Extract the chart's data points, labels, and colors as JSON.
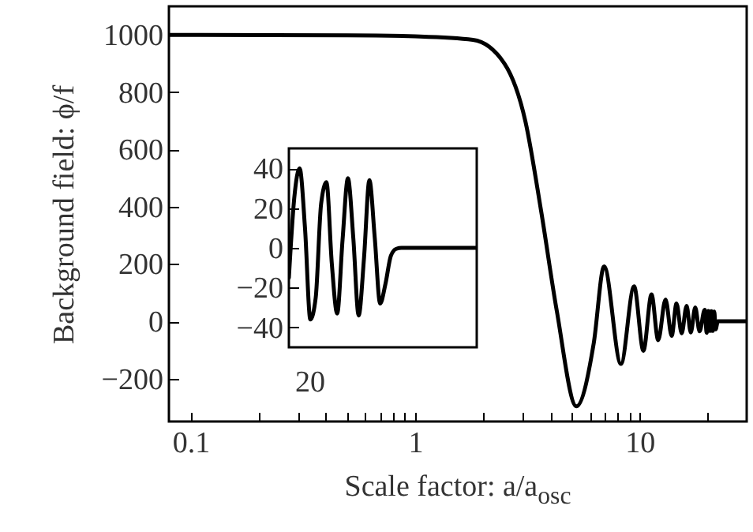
{
  "chart_data": [
    {
      "type": "line",
      "xlabel": "Scale factor: a/a$_{osc}$",
      "ylabel": "Background field: ϕ/f",
      "log": "x",
      "color": "#000000",
      "xlim": [
        0.08,
        30
      ],
      "ylim": [
        -350,
        1100
      ],
      "xticks": [
        0.1,
        {
          "value": 0.2,
          "label": null
        },
        {
          "value": 0.3,
          "label": null
        },
        {
          "value": 0.4,
          "label": null
        },
        {
          "value": 0.5,
          "label": null
        },
        {
          "value": 0.6,
          "label": null
        },
        {
          "value": 0.7,
          "label": null
        },
        {
          "value": 0.8,
          "label": null
        },
        {
          "value": 0.9,
          "label": null
        },
        1,
        {
          "value": 2,
          "label": null
        },
        {
          "value": 3,
          "label": null
        },
        {
          "value": 4,
          "label": null
        },
        {
          "value": 5,
          "label": null
        },
        {
          "value": 6,
          "label": null
        },
        {
          "value": 7,
          "label": null
        },
        {
          "value": 8,
          "label": null
        },
        {
          "value": 9,
          "label": null
        },
        10,
        {
          "value": 20,
          "label": null
        }
      ],
      "yticks": [
        {
          "value": -200,
          "label": "−200"
        },
        0,
        200,
        400,
        600,
        800,
        1000
      ],
      "x": [
        0.08,
        0.5,
        1,
        1.81,
        2.5,
        3.1,
        3.64,
        4.28,
        5.23,
        6.25,
        6.95,
        8.26,
        9.45,
        10.4,
        11.3,
        12.1,
        13.05,
        13.9,
        14.6,
        15.4,
        16.2,
        16.9,
        17.7,
        18.5,
        19.5,
        19.9,
        20.24,
        20.57,
        20.88,
        21.18,
        21.51,
        21.82,
        22.32,
        30
      ],
      "values": [
        1000,
        999,
        995,
        983,
        900,
        698,
        386,
        35,
        -297,
        -76,
        192,
        -149,
        122,
        -103,
        94,
        -66,
        76,
        -51,
        62,
        -42,
        54,
        -39,
        48,
        -35,
        40,
        -40,
        36,
        -34,
        35,
        -34,
        34,
        -28,
        0,
        0
      ]
    },
    {
      "type": "line",
      "color": "#000000",
      "ylim": [
        -50,
        50
      ],
      "annotations": [
        "20"
      ],
      "yticks": [
        {
          "value": -40,
          "label": "−40"
        },
        {
          "value": -20,
          "label": "−20"
        },
        0,
        20,
        40
      ],
      "categories": [
        null,
        null,
        null,
        null,
        null,
        null,
        null,
        null,
        null,
        null,
        null,
        null,
        null,
        null,
        null,
        null,
        null,
        null,
        null,
        null,
        null,
        null,
        null,
        null,
        null,
        null,
        null,
        null,
        null,
        null,
        null,
        null,
        null,
        null,
        null,
        null
      ],
      "values": [
        -15,
        25,
        40,
        10,
        -36,
        -25,
        22,
        33,
        -8,
        -33,
        4,
        35,
        5,
        -34,
        -5,
        34,
        5,
        -28,
        -18,
        -4,
        -0.5,
        0,
        0,
        0,
        0,
        0,
        0,
        0,
        0,
        0,
        0,
        0,
        0,
        0,
        0,
        0
      ]
    }
  ]
}
